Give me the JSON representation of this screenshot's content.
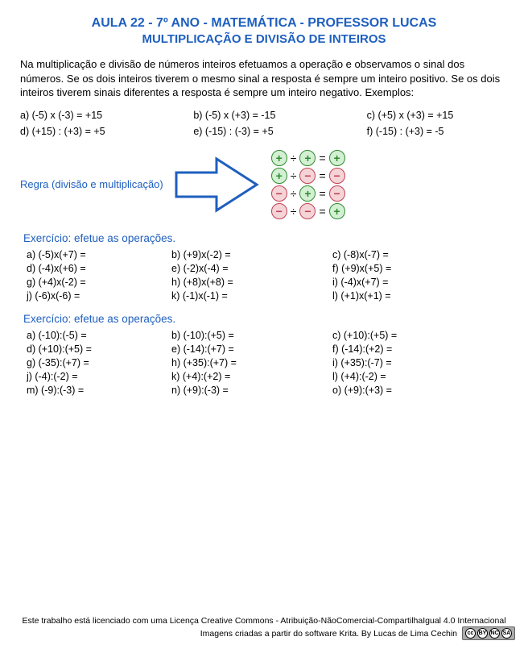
{
  "colors": {
    "heading": "#1e5fbf",
    "text": "#000000",
    "bg": "#ffffff",
    "plus_stroke": "#2e8b2e",
    "plus_fill": "#d4f0d4",
    "minus_stroke": "#c04050",
    "minus_fill": "#f5d4d8",
    "arrow_stroke": "#1e5fbf",
    "arrow_fill": "#ffffff"
  },
  "title1": "AULA 22 - 7º ANO - MATEMÁTICA - PROFESSOR LUCAS",
  "title2": "MULTIPLICAÇÃO E DIVISÃO DE INTEIROS",
  "intro": "Na multiplicação e divisão de números inteiros efetuamos a operação e observamos o sinal dos números. Se os dois inteiros tiverem o mesmo sinal a resposta é sempre um inteiro positivo. Se os dois inteiros tiverem sinais diferentes a resposta é sempre um inteiro negativo. Exemplos:",
  "examples": {
    "row1": [
      "a) (-5) x (-3) = +15",
      "b) (-5) x (+3) = -15",
      "c) (+5) x (+3) = +15"
    ],
    "row2": [
      "d) (+15) : (+3) = +5",
      "e) (-15) : (-3) = +5",
      "f) (-15) : (+3) = -5"
    ]
  },
  "rule_label": "Regra (divisão e multiplicação)",
  "sign_rules": [
    {
      "a": "+",
      "b": "+",
      "r": "+"
    },
    {
      "a": "+",
      "b": "-",
      "r": "-"
    },
    {
      "a": "-",
      "b": "+",
      "r": "-"
    },
    {
      "a": "-",
      "b": "-",
      "r": "+"
    }
  ],
  "ex1_title": "Exercício: efetue as operações.",
  "ex1": [
    [
      "a) (-5)x(+7) =",
      "b) (+9)x(-2) =",
      "c) (-8)x(-7) ="
    ],
    [
      "d) (-4)x(+6) =",
      "e) (-2)x(-4) =",
      "f) (+9)x(+5) ="
    ],
    [
      "g) (+4)x(-2) =",
      "h) (+8)x(+8) =",
      "i) (-4)x(+7) ="
    ],
    [
      "j) (-6)x(-6) =",
      "k) (-1)x(-1) =",
      "l) (+1)x(+1) ="
    ]
  ],
  "ex2_title": "Exercício: efetue as operações.",
  "ex2": [
    [
      "a) (-10):(-5) =",
      "b) (-10):(+5) =",
      "c) (+10):(+5) ="
    ],
    [
      "d) (+10):(+5) =",
      "e) (-14):(+7) =",
      "f) (-14):(+2) ="
    ],
    [
      "g) (-35):(+7) =",
      "h) (+35):(+7) =",
      "i) (+35):(-7) ="
    ],
    [
      "j) (-4):(-2) =",
      "k) (+4):(+2) =",
      "l) (+4):(-2) ="
    ],
    [
      "m) (-9):(-3) =",
      "n) (+9):(-3) =",
      "o) (+9):(+3) ="
    ]
  ],
  "footer1": "Este trabalho está licenciado com uma Licença Creative Commons - Atribuição-NãoComercial-CompartilhaIgual 4.0 Internacional",
  "footer2": "Imagens criadas a partir do software Krita.  By Lucas de Lima Cechin",
  "cc_labels": [
    "cc",
    "BY",
    "NC",
    "SA"
  ]
}
